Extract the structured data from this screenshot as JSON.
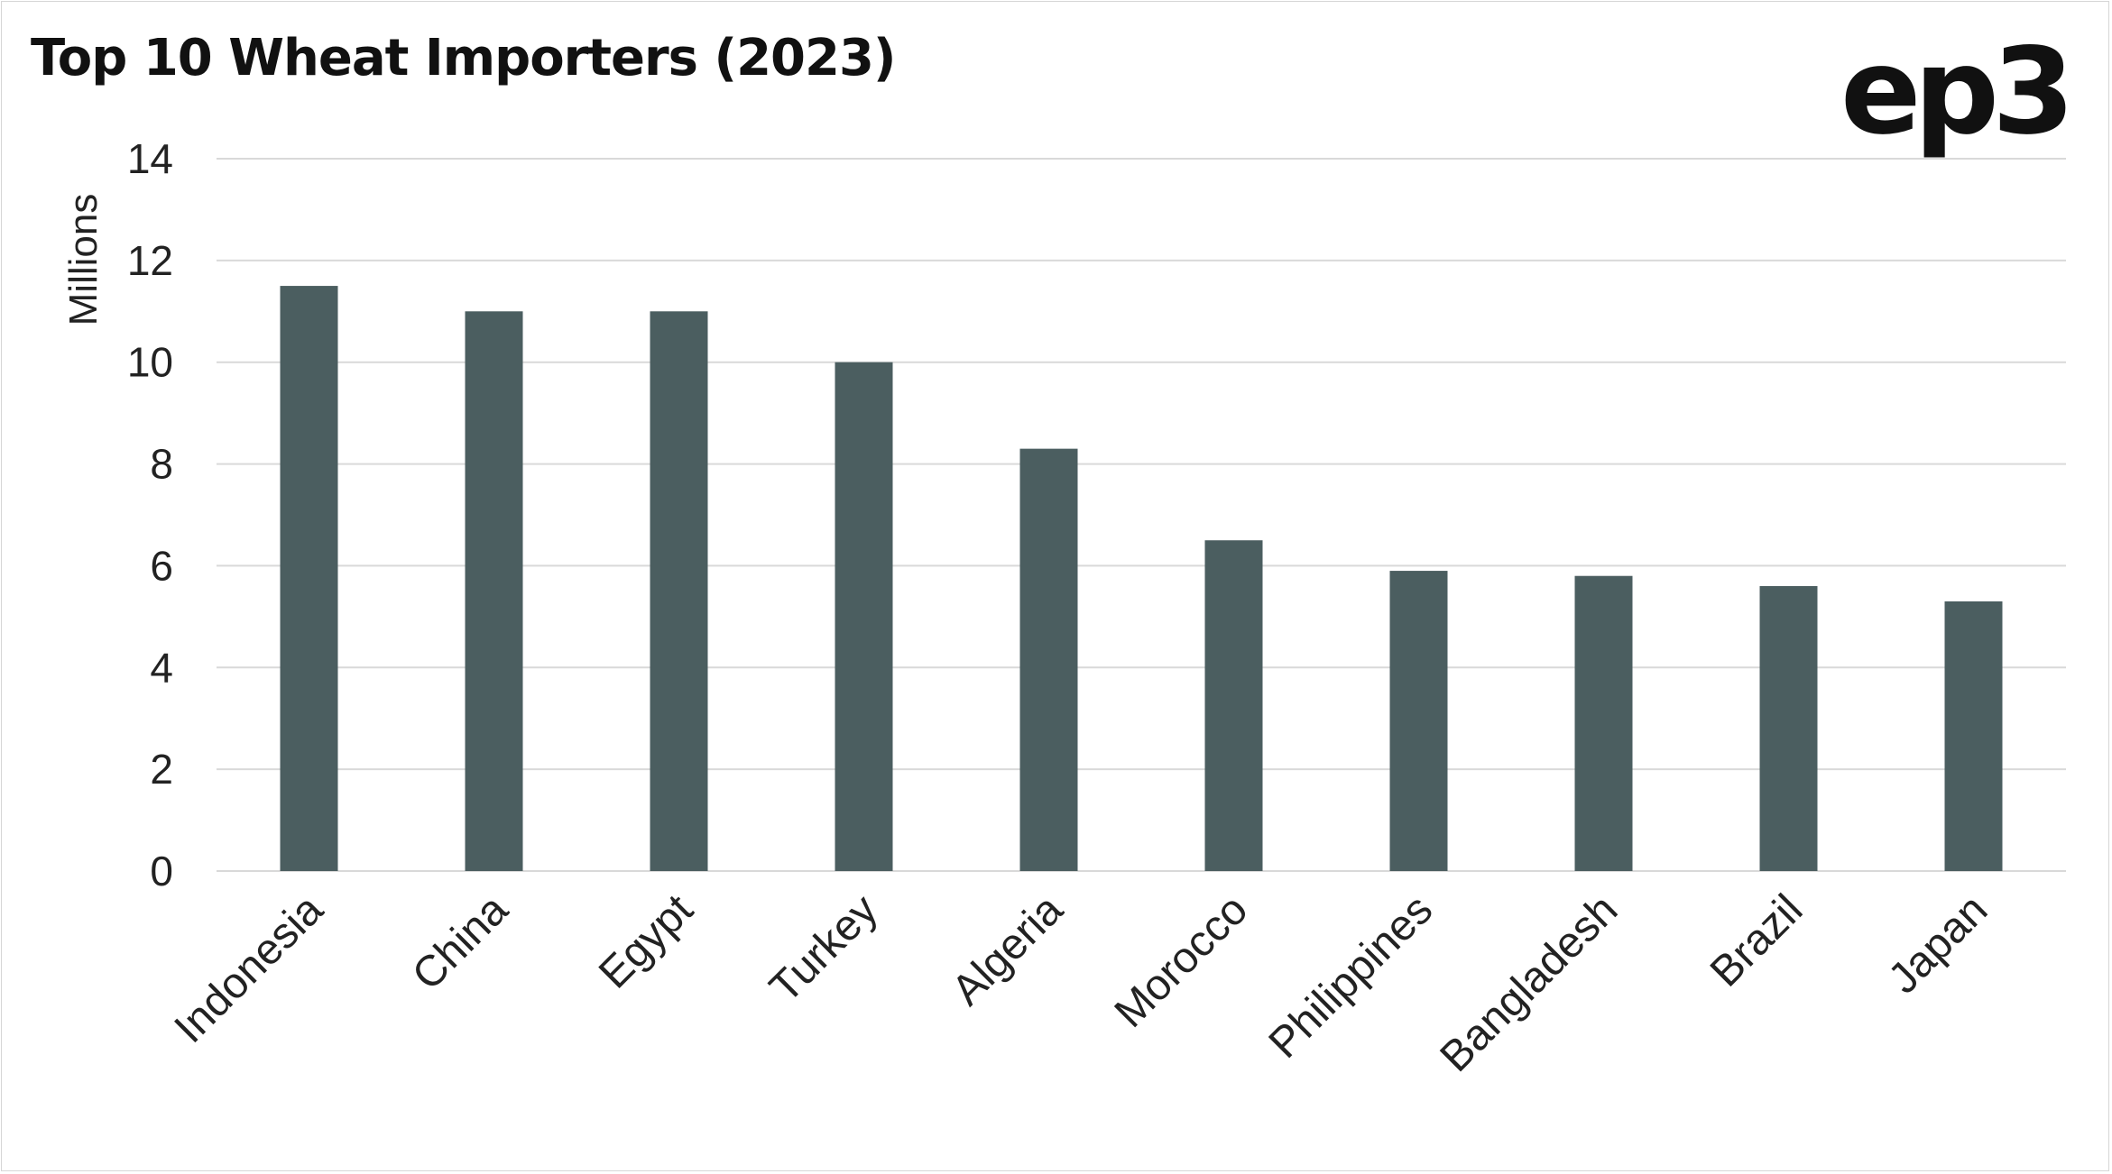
{
  "chart_data": {
    "type": "bar",
    "title": "Top 10 Wheat Importers (2023)",
    "xlabel": "",
    "ylabel": "Millions",
    "categories": [
      "Indonesia",
      "China",
      "Egypt",
      "Turkey",
      "Algeria",
      "Morocco",
      "Philippines",
      "Bangladesh",
      "Brazil",
      "Japan"
    ],
    "values": [
      11.5,
      11.0,
      11.0,
      10.0,
      8.3,
      6.5,
      5.9,
      5.8,
      5.6,
      5.3
    ],
    "ylim": [
      0,
      14
    ],
    "yticks": [
      "0",
      "2",
      "4",
      "6",
      "8",
      "10",
      "12",
      "14"
    ],
    "grid": true,
    "legend": "none",
    "bar_color": "#4b5e60",
    "gridline_color": "#d9d9d9"
  },
  "branding": {
    "logo_text": "ep3"
  }
}
